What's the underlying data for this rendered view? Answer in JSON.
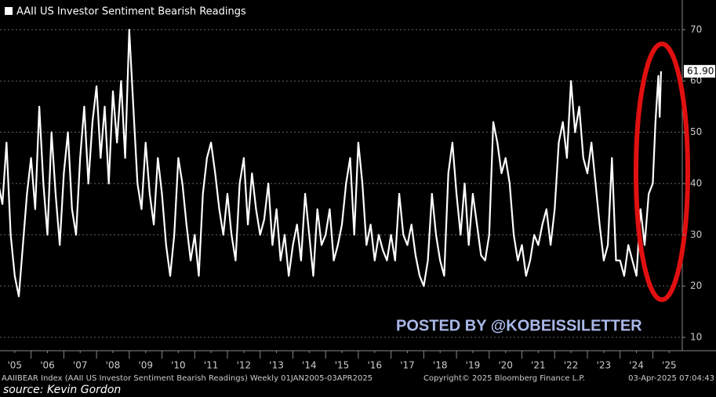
{
  "chart_data": {
    "type": "line",
    "title": "AAII US Investor Sentiment Bearish Readings",
    "series": [
      {
        "name": "AAII US Investor Sentiment Bearish Readings",
        "color": "#ffffff",
        "x": [
          2005,
          2005.125,
          2005.25,
          2005.375,
          2005.5,
          2005.625,
          2005.75,
          2005.875,
          2006,
          2006.125,
          2006.25,
          2006.375,
          2006.5,
          2006.625,
          2006.75,
          2006.875,
          2007,
          2007.125,
          2007.25,
          2007.375,
          2007.5,
          2007.625,
          2007.75,
          2007.875,
          2008,
          2008.125,
          2008.25,
          2008.375,
          2008.5,
          2008.625,
          2008.75,
          2008.875,
          2009,
          2009.125,
          2009.25,
          2009.375,
          2009.5,
          2009.625,
          2009.75,
          2009.875,
          2010,
          2010.125,
          2010.25,
          2010.375,
          2010.5,
          2010.625,
          2010.75,
          2010.875,
          2011,
          2011.125,
          2011.25,
          2011.375,
          2011.5,
          2011.625,
          2011.75,
          2011.875,
          2012,
          2012.125,
          2012.25,
          2012.375,
          2012.5,
          2012.625,
          2012.75,
          2012.875,
          2013,
          2013.125,
          2013.25,
          2013.375,
          2013.5,
          2013.625,
          2013.75,
          2013.875,
          2014,
          2014.125,
          2014.25,
          2014.375,
          2014.5,
          2014.625,
          2014.75,
          2014.875,
          2015,
          2015.125,
          2015.25,
          2015.375,
          2015.5,
          2015.625,
          2015.75,
          2015.875,
          2016,
          2016.125,
          2016.25,
          2016.375,
          2016.5,
          2016.625,
          2016.75,
          2016.875,
          2017,
          2017.125,
          2017.25,
          2017.375,
          2017.5,
          2017.625,
          2017.75,
          2017.875,
          2018,
          2018.125,
          2018.25,
          2018.375,
          2018.5,
          2018.625,
          2018.75,
          2018.875,
          2019,
          2019.125,
          2019.25,
          2019.375,
          2019.5,
          2019.625,
          2019.75,
          2019.875,
          2020,
          2020.125,
          2020.25,
          2020.375,
          2020.5,
          2020.625,
          2020.75,
          2020.875,
          2021,
          2021.125,
          2021.25,
          2021.375,
          2021.5,
          2021.625,
          2021.75,
          2021.875,
          2022,
          2022.125,
          2022.25,
          2022.375,
          2022.5,
          2022.625,
          2022.75,
          2022.875,
          2023,
          2023.125,
          2023.25,
          2023.375,
          2023.5,
          2023.625,
          2023.75,
          2023.875,
          2024,
          2024.125,
          2024.25,
          2024.375,
          2024.5,
          2024.625,
          2024.75,
          2024.875,
          2025,
          2025.08,
          2025.17,
          2025.21,
          2025.25
        ],
        "values": [
          40,
          36,
          48,
          30,
          22,
          18,
          28,
          38,
          45,
          35,
          55,
          40,
          30,
          50,
          38,
          28,
          42,
          50,
          35,
          30,
          45,
          55,
          40,
          52,
          59,
          45,
          55,
          40,
          58,
          48,
          60,
          45,
          70,
          55,
          40,
          35,
          48,
          38,
          32,
          45,
          38,
          28,
          22,
          30,
          45,
          40,
          32,
          25,
          30,
          22,
          38,
          45,
          48,
          42,
          35,
          30,
          38,
          30,
          25,
          40,
          45,
          32,
          42,
          35,
          30,
          33,
          40,
          28,
          35,
          25,
          30,
          22,
          28,
          32,
          25,
          38,
          30,
          22,
          35,
          28,
          30,
          35,
          25,
          28,
          32,
          40,
          45,
          30,
          48,
          40,
          28,
          32,
          25,
          30,
          27,
          25,
          30,
          25,
          38,
          30,
          28,
          32,
          26,
          22,
          20,
          25,
          38,
          30,
          25,
          22,
          42,
          48,
          38,
          30,
          40,
          28,
          38,
          32,
          26,
          25,
          30,
          52,
          48,
          42,
          45,
          40,
          30,
          25,
          28,
          22,
          25,
          30,
          28,
          32,
          35,
          28,
          35,
          48,
          52,
          45,
          60,
          50,
          55,
          45,
          42,
          48,
          40,
          32,
          25,
          28,
          45,
          25,
          25,
          22,
          28,
          25,
          22,
          35,
          28,
          38,
          40,
          52,
          61,
          53,
          61.9
        ]
      }
    ],
    "last_value_label": "61.90",
    "xlim": [
      2005.05,
      2025.9
    ],
    "xticks": [
      {
        "value": 2005.5,
        "label": "'05"
      },
      {
        "value": 2006.5,
        "label": "'06"
      },
      {
        "value": 2007.5,
        "label": "'07"
      },
      {
        "value": 2008.5,
        "label": "'08"
      },
      {
        "value": 2009.5,
        "label": "'09"
      },
      {
        "value": 2010.5,
        "label": "'10"
      },
      {
        "value": 2011.5,
        "label": "'11"
      },
      {
        "value": 2012.5,
        "label": "'12"
      },
      {
        "value": 2013.5,
        "label": "'13"
      },
      {
        "value": 2014.5,
        "label": "'14"
      },
      {
        "value": 2015.5,
        "label": "'15"
      },
      {
        "value": 2016.5,
        "label": "'16"
      },
      {
        "value": 2017.5,
        "label": "'17"
      },
      {
        "value": 2018.5,
        "label": "'18"
      },
      {
        "value": 2019.5,
        "label": "'19"
      },
      {
        "value": 2020.5,
        "label": "'20"
      },
      {
        "value": 2021.5,
        "label": "'21"
      },
      {
        "value": 2022.5,
        "label": "'22"
      },
      {
        "value": 2023.5,
        "label": "'23"
      },
      {
        "value": 2024.5,
        "label": "'24"
      },
      {
        "value": 2025.5,
        "label": "'25"
      }
    ],
    "ylim": [
      7.7,
      75.8
    ],
    "yticks": [
      10,
      20,
      30,
      40,
      50,
      60,
      70
    ],
    "grid": true,
    "watermark": "POSTED BY @KOBEISSILETTER",
    "footer_index": "AAIIBEAR Index (AAII US Investor Sentiment Bearish Readings) Weekly 01JAN2005-03APR2025",
    "footer_copyright": "Copyright© 2025 Bloomberg Finance L.P.",
    "footer_timestamp": "03-Apr-2025 07:04:43",
    "source": "source: Kevin Gordon"
  }
}
